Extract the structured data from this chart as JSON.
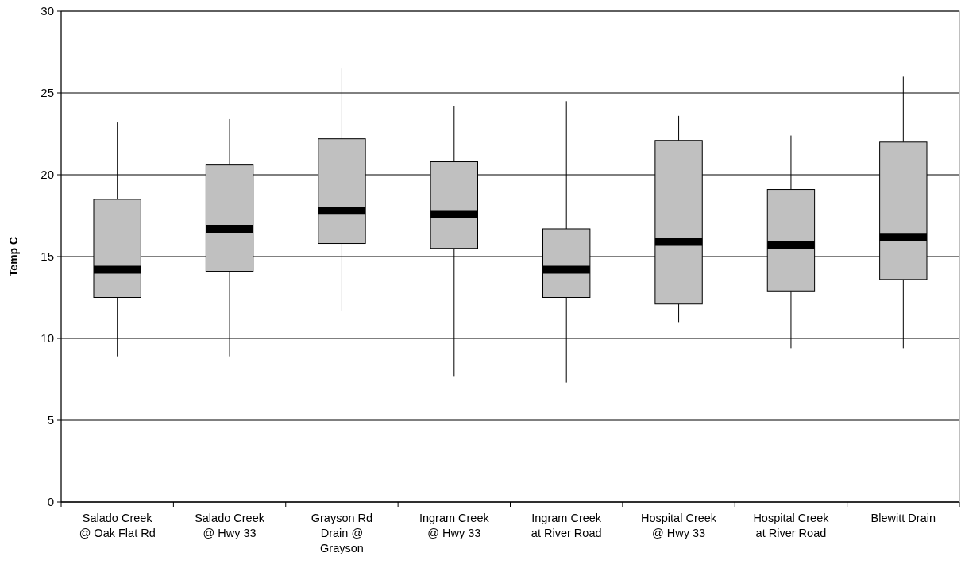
{
  "chart_data": {
    "type": "box",
    "ylabel": "Temp C",
    "categories": [
      "Salado Creek @ Oak Flat Rd",
      "Salado Creek @ Hwy 33",
      "Grayson Rd Drain @ Grayson",
      "Ingram Creek @ Hwy 33",
      "Ingram Creek at River Road",
      "Hospital Creek @ Hwy 33",
      "Hospital Creek at River Road",
      "Blewitt Drain"
    ],
    "boxes": [
      {
        "low": 8.9,
        "q1": 12.5,
        "median": 14.2,
        "q3": 18.5,
        "high": 23.2
      },
      {
        "low": 8.9,
        "q1": 14.1,
        "median": 16.7,
        "q3": 20.6,
        "high": 23.4
      },
      {
        "low": 11.7,
        "q1": 15.8,
        "median": 17.8,
        "q3": 22.2,
        "high": 26.5
      },
      {
        "low": 7.7,
        "q1": 15.5,
        "median": 17.6,
        "q3": 20.8,
        "high": 24.2
      },
      {
        "low": 7.3,
        "q1": 12.5,
        "median": 14.2,
        "q3": 16.7,
        "high": 24.5
      },
      {
        "low": 11.0,
        "q1": 12.1,
        "median": 15.9,
        "q3": 22.1,
        "high": 23.6
      },
      {
        "low": 9.4,
        "q1": 12.9,
        "median": 15.7,
        "q3": 19.1,
        "high": 22.4
      },
      {
        "low": 9.4,
        "q1": 13.6,
        "median": 16.2,
        "q3": 22.0,
        "high": 26.0
      }
    ],
    "color": "#c0c0c0",
    "ylim": [
      0,
      30
    ],
    "yticks": [
      0,
      5,
      10,
      15,
      20,
      25,
      30
    ],
    "grid": "y"
  }
}
